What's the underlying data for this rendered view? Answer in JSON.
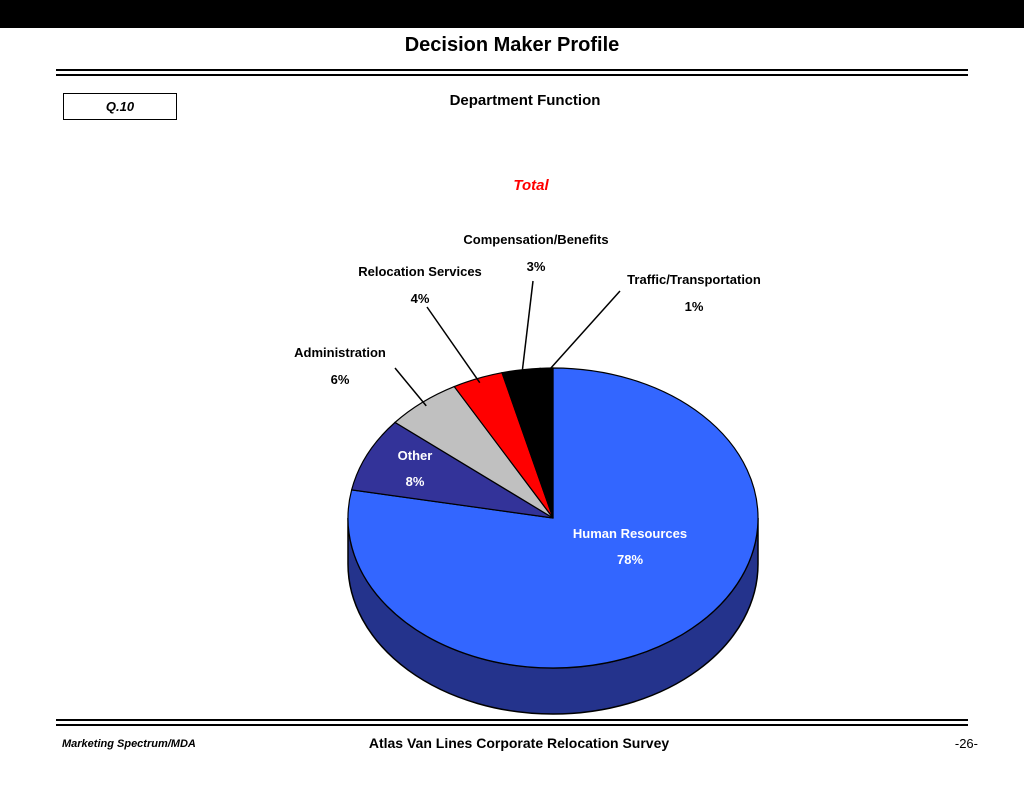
{
  "slide": {
    "top_title": "Decision Maker Profile",
    "question_tag": "Q.10",
    "section_title": "Department Function",
    "footer": {
      "left": "Marketing Spectrum/MDA",
      "center": "Atlas Van Lines Corporate Relocation Survey",
      "page": "-26-"
    }
  },
  "colors": {
    "top_bar": "#000000",
    "background": "#FFFFFF",
    "total_heading": "#FF0000",
    "pie_rim": "#24338C",
    "outline": "#000000"
  },
  "chart_data": {
    "type": "pie",
    "style": "3d",
    "title": "Total",
    "subtitle": "Department Function",
    "start_angle_deg": 0,
    "direction": "clockwise",
    "total": 100,
    "slices": [
      {
        "label": "Human Resources",
        "value": 78,
        "pct_label": "78%",
        "color": "#3366FF",
        "label_inside": true,
        "label_color": "#FFFFFF"
      },
      {
        "label": "Other",
        "value": 8,
        "pct_label": "8%",
        "color": "#333399",
        "label_inside": true,
        "label_color": "#FFFFFF"
      },
      {
        "label": "Administration",
        "value": 6,
        "pct_label": "6%",
        "color": "#C0C0C0",
        "label_inside": false,
        "label_color": "#000000"
      },
      {
        "label": "Relocation Services",
        "value": 4,
        "pct_label": "4%",
        "color": "#FF0000",
        "label_inside": false,
        "label_color": "#000000"
      },
      {
        "label": "Compensation/Benefits",
        "value": 3,
        "pct_label": "3%",
        "color": "#000000",
        "label_inside": false,
        "label_color": "#000000"
      },
      {
        "label": "Traffic/Transportation",
        "value": 1,
        "pct_label": "1%",
        "color": "#000000",
        "label_inside": false,
        "label_color": "#000000"
      }
    ]
  }
}
